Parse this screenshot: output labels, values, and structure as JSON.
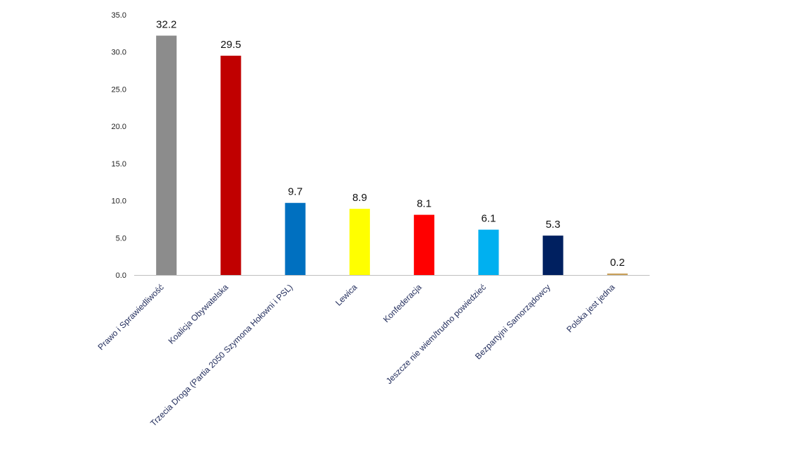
{
  "chart_data": {
    "type": "bar",
    "title": "",
    "xlabel": "",
    "ylabel": "",
    "ylim": [
      0,
      35
    ],
    "yticks": [
      "0.0",
      "5.0",
      "10.0",
      "15.0",
      "20.0",
      "25.0",
      "30.0",
      "35.0"
    ],
    "grid": false,
    "legend": "none",
    "categories": [
      "Prawo i Sprawiedliwość",
      "Koalicja Obywatelska",
      "Trzecia Droga (Partia 2050 Szymona Hołowni i PSL)",
      "Lewica",
      "Konfederacja",
      "Jeszcze nie wiem/trudno powiedzieć",
      "Bezpartyjni Samorządowcy",
      "Polska jest jedna"
    ],
    "values": [
      32.2,
      29.5,
      9.7,
      8.9,
      8.1,
      6.1,
      5.3,
      0.2
    ],
    "value_labels": [
      "32.2",
      "29.5",
      "9.7",
      "8.9",
      "8.1",
      "6.1",
      "5.3",
      "0.2"
    ],
    "colors": [
      "#8c8c8c",
      "#c00000",
      "#0070c0",
      "#ffff00",
      "#ff0000",
      "#00b0f0",
      "#002060",
      "#c9a15a"
    ]
  }
}
